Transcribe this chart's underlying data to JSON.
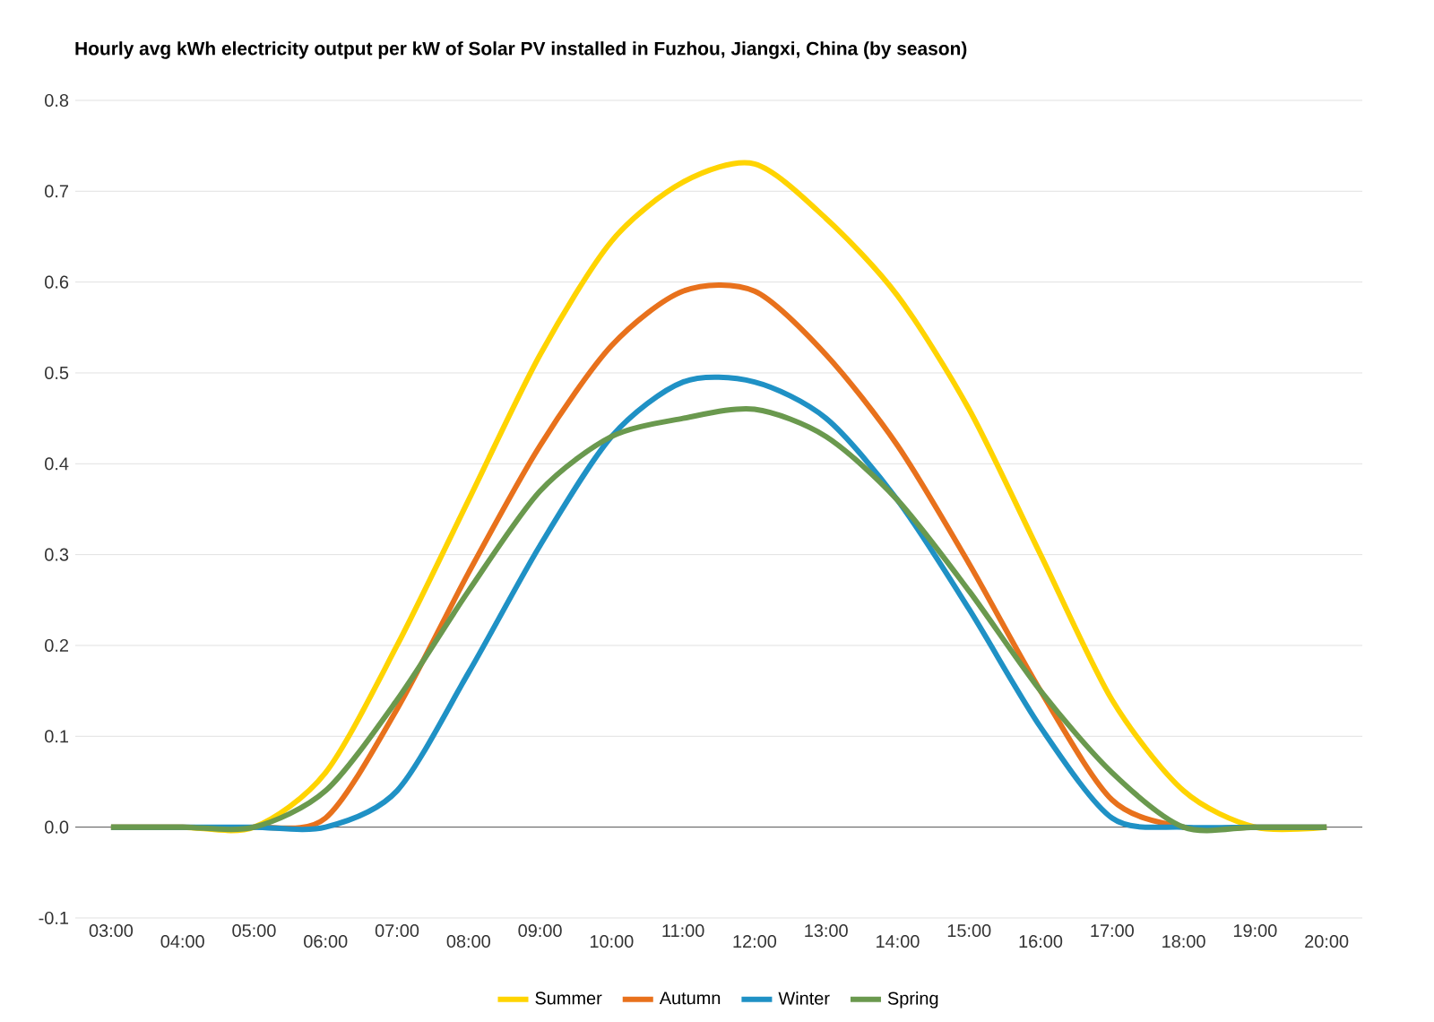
{
  "chart_data": {
    "type": "line",
    "title": "Hourly avg kWh electricity output per kW of Solar PV installed in Fuzhou, Jiangxi, China (by season)",
    "categories": [
      "03:00",
      "04:00",
      "05:00",
      "06:00",
      "07:00",
      "08:00",
      "09:00",
      "10:00",
      "11:00",
      "12:00",
      "13:00",
      "14:00",
      "15:00",
      "16:00",
      "17:00",
      "18:00",
      "19:00",
      "20:00"
    ],
    "series": [
      {
        "name": "Summer",
        "color": "#ffd400",
        "values": [
          0,
          0,
          0,
          0.06,
          0.2,
          0.36,
          0.52,
          0.645,
          0.71,
          0.73,
          0.67,
          0.585,
          0.46,
          0.3,
          0.14,
          0.04,
          0,
          0
        ]
      },
      {
        "name": "Autumn",
        "color": "#e8711c",
        "values": [
          0,
          0,
          0,
          0.01,
          0.13,
          0.28,
          0.42,
          0.53,
          0.59,
          0.59,
          0.52,
          0.42,
          0.29,
          0.15,
          0.03,
          0,
          0,
          0
        ]
      },
      {
        "name": "Winter",
        "color": "#1f91c5",
        "values": [
          0,
          0,
          0,
          0,
          0.04,
          0.17,
          0.31,
          0.43,
          0.49,
          0.49,
          0.45,
          0.36,
          0.24,
          0.11,
          0.01,
          0,
          0,
          0
        ]
      },
      {
        "name": "Spring",
        "color": "#6a994e",
        "values": [
          0,
          0,
          0,
          0.04,
          0.14,
          0.26,
          0.37,
          0.43,
          0.45,
          0.46,
          0.43,
          0.36,
          0.26,
          0.15,
          0.06,
          0,
          0,
          0
        ]
      }
    ],
    "ylim": [
      -0.1,
      0.8
    ],
    "yticks": [
      -0.1,
      {
        "value": 0,
        "label": "0.0"
      },
      0.1,
      0.2,
      0.3,
      0.4,
      0.5,
      0.6,
      0.7,
      0.8
    ],
    "grid": "y",
    "legend": "bottom",
    "marker": "none",
    "line_style": "solid"
  }
}
